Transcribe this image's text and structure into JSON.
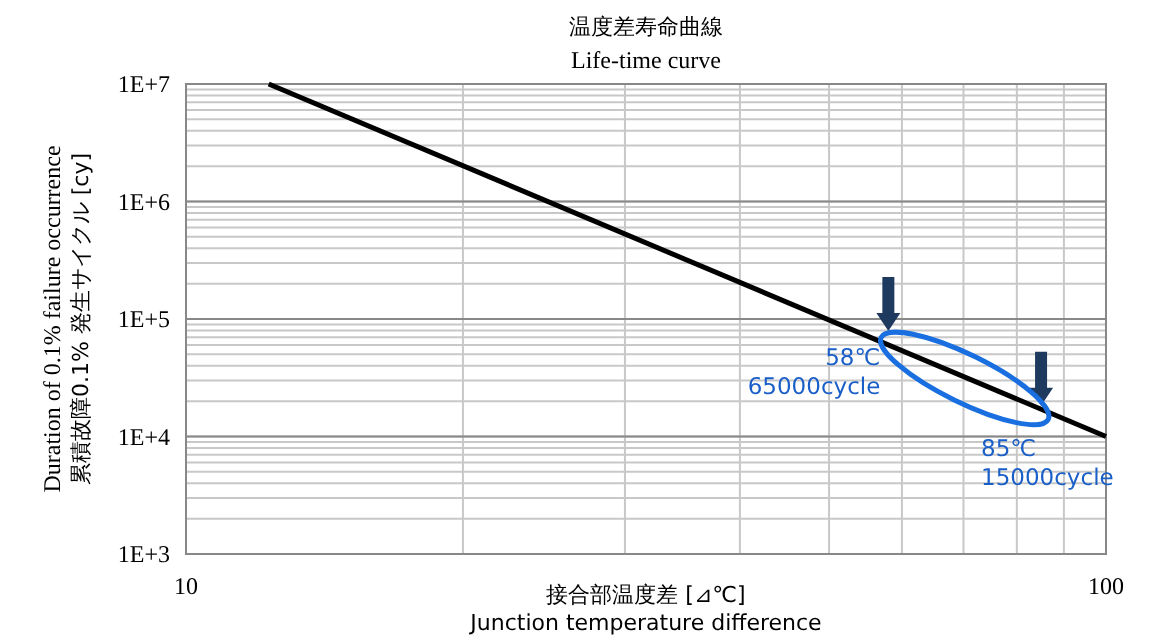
{
  "chart_data": {
    "type": "line",
    "title": "温度差寿命曲線",
    "subtitle": "Life-time curve",
    "xlabel": "接合部温度差 [⊿℃]\nJunction temperature difference",
    "ylabel": "Duration of 0.1% failure occurrence\n累積故障0.1% 発生サイクル [cy]",
    "log": "xy",
    "grid": true,
    "x": [
      12.3,
      100
    ],
    "series": [
      {
        "color": "#000000",
        "values": [
          10000000,
          10000
        ]
      }
    ],
    "xlim": [
      10,
      100
    ],
    "xticks": [
      10,
      100
    ],
    "ylim": [
      1000,
      10000000
    ],
    "yticks": [
      {
        "value": 1000,
        "label": "1E+3"
      },
      {
        "value": 10000,
        "label": "1E+4"
      },
      {
        "value": 100000,
        "label": "1E+5"
      },
      {
        "value": 1000000,
        "label": "1E+6"
      },
      {
        "value": 10000000,
        "label": "1E+7"
      }
    ],
    "annotations": [
      {
        "text": "58℃\n65000cycle",
        "x": 58,
        "y": 65000
      },
      {
        "text": "85℃\n15000cycle",
        "x": 85,
        "y": 15000
      }
    ]
  }
}
